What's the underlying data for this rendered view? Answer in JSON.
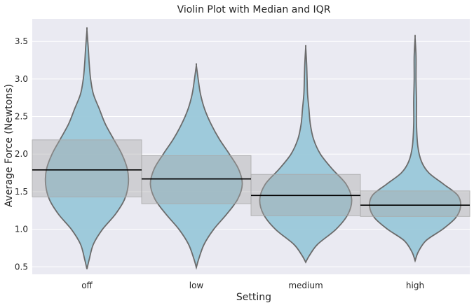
{
  "chart_data": {
    "type": "violin",
    "title": "Violin Plot with Median and IQR",
    "xlabel": "Setting",
    "ylabel": "Average Force (Newtons)",
    "categories": [
      "off",
      "low",
      "medium",
      "high"
    ],
    "ylim": [
      0.4,
      3.8
    ],
    "yticks": [
      "0.5",
      "1.0",
      "1.5",
      "2.0",
      "2.5",
      "3.0",
      "3.5"
    ],
    "grid": true,
    "colors": {
      "background": "#eaeaf2",
      "grid": "#ffffff",
      "violin_fill": "#9ac8d9",
      "violin_edge": "#6b6b6b",
      "iqr_box": "#a9a9a9",
      "median_line": "#000000"
    },
    "series": [
      {
        "name": "off",
        "min": 0.47,
        "max": 3.65,
        "q1": 1.43,
        "median": 1.79,
        "q3": 2.19,
        "density": [
          [
            0.47,
            0.0
          ],
          [
            0.6,
            0.05
          ],
          [
            0.8,
            0.14
          ],
          [
            1.0,
            0.34
          ],
          [
            1.2,
            0.62
          ],
          [
            1.4,
            0.82
          ],
          [
            1.6,
            0.9
          ],
          [
            1.8,
            0.88
          ],
          [
            2.0,
            0.76
          ],
          [
            2.2,
            0.58
          ],
          [
            2.4,
            0.4
          ],
          [
            2.6,
            0.27
          ],
          [
            2.8,
            0.14
          ],
          [
            3.0,
            0.08
          ],
          [
            3.2,
            0.05
          ],
          [
            3.4,
            0.03
          ],
          [
            3.65,
            0.0
          ]
        ]
      },
      {
        "name": "low",
        "min": 0.49,
        "max": 3.18,
        "q1": 1.34,
        "median": 1.67,
        "q3": 1.98,
        "density": [
          [
            0.49,
            0.0
          ],
          [
            0.6,
            0.05
          ],
          [
            0.8,
            0.17
          ],
          [
            1.0,
            0.38
          ],
          [
            1.2,
            0.66
          ],
          [
            1.4,
            0.9
          ],
          [
            1.6,
            1.0
          ],
          [
            1.8,
            0.92
          ],
          [
            2.0,
            0.72
          ],
          [
            2.2,
            0.5
          ],
          [
            2.4,
            0.32
          ],
          [
            2.6,
            0.18
          ],
          [
            2.8,
            0.09
          ],
          [
            3.0,
            0.04
          ],
          [
            3.18,
            0.0
          ]
        ]
      },
      {
        "name": "medium",
        "min": 0.56,
        "max": 3.42,
        "q1": 1.18,
        "median": 1.45,
        "q3": 1.73,
        "density": [
          [
            0.56,
            0.0
          ],
          [
            0.65,
            0.08
          ],
          [
            0.8,
            0.26
          ],
          [
            1.0,
            0.66
          ],
          [
            1.2,
            0.92
          ],
          [
            1.4,
            1.0
          ],
          [
            1.6,
            0.88
          ],
          [
            1.8,
            0.58
          ],
          [
            2.0,
            0.32
          ],
          [
            2.2,
            0.17
          ],
          [
            2.4,
            0.1
          ],
          [
            2.6,
            0.07
          ],
          [
            2.8,
            0.04
          ],
          [
            3.0,
            0.03
          ],
          [
            3.2,
            0.02
          ],
          [
            3.42,
            0.0
          ]
        ]
      },
      {
        "name": "high",
        "min": 0.58,
        "max": 3.55,
        "q1": 1.17,
        "median": 1.32,
        "q3": 1.51,
        "density": [
          [
            0.58,
            0.0
          ],
          [
            0.7,
            0.07
          ],
          [
            0.85,
            0.24
          ],
          [
            1.0,
            0.6
          ],
          [
            1.15,
            0.88
          ],
          [
            1.3,
            0.99
          ],
          [
            1.45,
            0.93
          ],
          [
            1.6,
            0.62
          ],
          [
            1.75,
            0.3
          ],
          [
            1.9,
            0.14
          ],
          [
            2.1,
            0.06
          ],
          [
            2.4,
            0.03
          ],
          [
            2.7,
            0.03
          ],
          [
            3.0,
            0.02
          ],
          [
            3.3,
            0.02
          ],
          [
            3.55,
            0.0
          ]
        ]
      }
    ]
  }
}
